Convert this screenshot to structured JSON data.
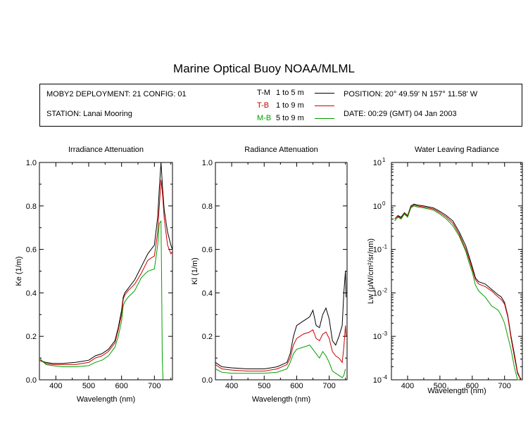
{
  "title": "Marine Optical Buoy NOAA/MLML",
  "header": {
    "deployment": "MOBY2 DEPLOYMENT: 21 CONFIG: 01",
    "station": "STATION: Lanai Mooring",
    "position": "POSITION: 20° 49.59' N   157° 11.58' W",
    "date": "DATE: 00:29 (GMT) 04 Jan 2003",
    "legend": [
      {
        "name": "T-M",
        "range": "1 to 5  m",
        "color": "#000000"
      },
      {
        "name": "T-B",
        "range": "1 to 9  m",
        "color": "#cc0000"
      },
      {
        "name": "M-B",
        "range": "5 to 9  m",
        "color": "#00a000"
      }
    ]
  },
  "chart_data": [
    {
      "type": "line",
      "title": "Irradiance Attenuation",
      "xlabel": "Wavelength (nm)",
      "ylabel": "Ke  (1/m)",
      "xlim": [
        350,
        755
      ],
      "ylim": [
        0,
        1
      ],
      "xticks": [
        400,
        500,
        600,
        700
      ],
      "yticks": [
        "0.0",
        "0.2",
        "0.4",
        "0.6",
        "0.8",
        "1.0"
      ],
      "series": [
        {
          "name": "T-M",
          "color": "#000000",
          "x": [
            350,
            370,
            390,
            420,
            460,
            500,
            520,
            540,
            560,
            580,
            590,
            600,
            605,
            610,
            620,
            640,
            660,
            680,
            700,
            710,
            715,
            720,
            725,
            730,
            740,
            750,
            755
          ],
          "y": [
            0.09,
            0.08,
            0.075,
            0.075,
            0.08,
            0.09,
            0.11,
            0.12,
            0.14,
            0.18,
            0.24,
            0.32,
            0.38,
            0.4,
            0.42,
            0.46,
            0.52,
            0.58,
            0.62,
            0.75,
            0.88,
            1.0,
            0.88,
            0.78,
            0.68,
            0.62,
            0.6
          ]
        },
        {
          "name": "T-B",
          "color": "#cc0000",
          "x": [
            350,
            370,
            390,
            420,
            460,
            500,
            520,
            540,
            560,
            580,
            590,
            600,
            605,
            610,
            620,
            640,
            660,
            680,
            700,
            710,
            715,
            720,
            725,
            730,
            740,
            750,
            755
          ],
          "y": [
            0.09,
            0.075,
            0.07,
            0.07,
            0.07,
            0.08,
            0.1,
            0.11,
            0.13,
            0.17,
            0.23,
            0.3,
            0.37,
            0.39,
            0.41,
            0.44,
            0.49,
            0.55,
            0.57,
            0.68,
            0.8,
            0.92,
            0.85,
            0.74,
            0.62,
            0.58,
            0.59
          ]
        },
        {
          "name": "M-B",
          "color": "#00a000",
          "x": [
            350,
            370,
            390,
            420,
            460,
            500,
            520,
            540,
            560,
            580,
            590,
            600,
            605,
            610,
            620,
            640,
            660,
            680,
            700,
            710,
            715,
            720,
            722,
            724,
            726
          ],
          "y": [
            0.1,
            0.07,
            0.065,
            0.06,
            0.06,
            0.065,
            0.08,
            0.09,
            0.11,
            0.15,
            0.2,
            0.27,
            0.34,
            0.36,
            0.38,
            0.41,
            0.47,
            0.5,
            0.51,
            0.62,
            0.72,
            0.73,
            0.45,
            0.1,
            0.0
          ]
        }
      ]
    },
    {
      "type": "line",
      "title": "Radiance Attenuation",
      "xlabel": "Wavelength (nm)",
      "ylabel": "Kl  (1/m)",
      "xlim": [
        350,
        755
      ],
      "ylim": [
        0,
        1
      ],
      "xticks": [
        400,
        500,
        600,
        700
      ],
      "yticks": [
        "0.0",
        "0.2",
        "0.4",
        "0.6",
        "0.8",
        "1.0"
      ],
      "series": [
        {
          "name": "T-M",
          "color": "#000000",
          "x": [
            350,
            370,
            400,
            450,
            500,
            540,
            570,
            580,
            590,
            600,
            620,
            640,
            650,
            660,
            670,
            680,
            690,
            700,
            710,
            720,
            730,
            740,
            745,
            750,
            752
          ],
          "y": [
            0.08,
            0.06,
            0.055,
            0.05,
            0.05,
            0.06,
            0.08,
            0.12,
            0.2,
            0.25,
            0.27,
            0.29,
            0.32,
            0.25,
            0.24,
            0.3,
            0.33,
            0.28,
            0.18,
            0.16,
            0.2,
            0.25,
            0.4,
            0.5,
            0.38
          ]
        },
        {
          "name": "T-B",
          "color": "#cc0000",
          "x": [
            350,
            370,
            400,
            450,
            500,
            540,
            570,
            580,
            590,
            600,
            620,
            640,
            650,
            660,
            670,
            680,
            690,
            700,
            710,
            720,
            730,
            740,
            745,
            750,
            752
          ],
          "y": [
            0.07,
            0.05,
            0.045,
            0.04,
            0.04,
            0.05,
            0.07,
            0.1,
            0.16,
            0.19,
            0.21,
            0.22,
            0.23,
            0.19,
            0.18,
            0.21,
            0.22,
            0.19,
            0.13,
            0.11,
            0.1,
            0.08,
            0.15,
            0.25,
            0.2
          ]
        },
        {
          "name": "M-B",
          "color": "#00a000",
          "x": [
            350,
            370,
            400,
            450,
            500,
            540,
            570,
            580,
            590,
            600,
            620,
            640,
            650,
            660,
            670,
            680,
            690,
            700,
            710,
            720,
            730,
            740,
            745,
            750
          ],
          "y": [
            0.05,
            0.035,
            0.03,
            0.03,
            0.03,
            0.035,
            0.05,
            0.08,
            0.12,
            0.14,
            0.15,
            0.16,
            0.14,
            0.12,
            0.1,
            0.13,
            0.11,
            0.08,
            0.04,
            0.03,
            0.02,
            0.01,
            0.02,
            0.05
          ]
        }
      ]
    },
    {
      "type": "line",
      "title": "Water Leaving Radiance",
      "xlabel": "Wavelength (nm)",
      "ylabel": "Lw  (μW/cm²/sr/nm)",
      "yscale": "log",
      "xlim": [
        350,
        755
      ],
      "ylim": [
        0.0001,
        10
      ],
      "xticks": [
        400,
        500,
        600,
        700
      ],
      "yticks": [
        "10^1",
        "10^0",
        "10^-1",
        "10^-2",
        "10^-3",
        "10^-4"
      ],
      "series": [
        {
          "name": "T-M",
          "color": "#000000",
          "x": [
            360,
            370,
            380,
            390,
            400,
            410,
            420,
            430,
            450,
            480,
            500,
            520,
            540,
            560,
            580,
            590,
            600,
            610,
            620,
            640,
            660,
            680,
            690,
            700,
            710,
            720,
            730,
            740,
            750
          ],
          "y": [
            0.5,
            0.6,
            0.55,
            0.7,
            0.6,
            1.0,
            1.1,
            1.05,
            1.0,
            0.9,
            0.75,
            0.6,
            0.45,
            0.25,
            0.12,
            0.07,
            0.04,
            0.022,
            0.018,
            0.016,
            0.012,
            0.009,
            0.008,
            0.006,
            0.003,
            0.001,
            0.0004,
            0.00015,
            0.0001
          ]
        },
        {
          "name": "T-B",
          "color": "#cc0000",
          "x": [
            360,
            370,
            380,
            390,
            400,
            410,
            420,
            430,
            450,
            480,
            500,
            520,
            540,
            560,
            580,
            590,
            600,
            610,
            620,
            640,
            660,
            680,
            690,
            700,
            710,
            720,
            730,
            740,
            750
          ],
          "y": [
            0.5,
            0.58,
            0.52,
            0.68,
            0.58,
            0.95,
            1.05,
            1.0,
            0.95,
            0.85,
            0.7,
            0.55,
            0.4,
            0.22,
            0.1,
            0.06,
            0.035,
            0.02,
            0.016,
            0.014,
            0.011,
            0.008,
            0.007,
            0.0055,
            0.0028,
            0.0009,
            0.00035,
            0.00014,
            0.0001
          ]
        },
        {
          "name": "M-B",
          "color": "#00a000",
          "x": [
            360,
            370,
            380,
            390,
            400,
            410,
            420,
            430,
            450,
            480,
            500,
            520,
            540,
            560,
            580,
            590,
            600,
            610,
            620,
            640,
            660,
            680,
            690,
            700,
            710,
            720,
            730,
            740,
            745
          ],
          "y": [
            0.45,
            0.55,
            0.5,
            0.65,
            0.55,
            0.9,
            1.0,
            0.95,
            0.9,
            0.8,
            0.65,
            0.5,
            0.35,
            0.2,
            0.09,
            0.05,
            0.03,
            0.015,
            0.011,
            0.008,
            0.005,
            0.004,
            0.003,
            0.002,
            0.001,
            0.0005,
            0.0002,
            0.0001,
            0.0001
          ]
        }
      ]
    }
  ]
}
